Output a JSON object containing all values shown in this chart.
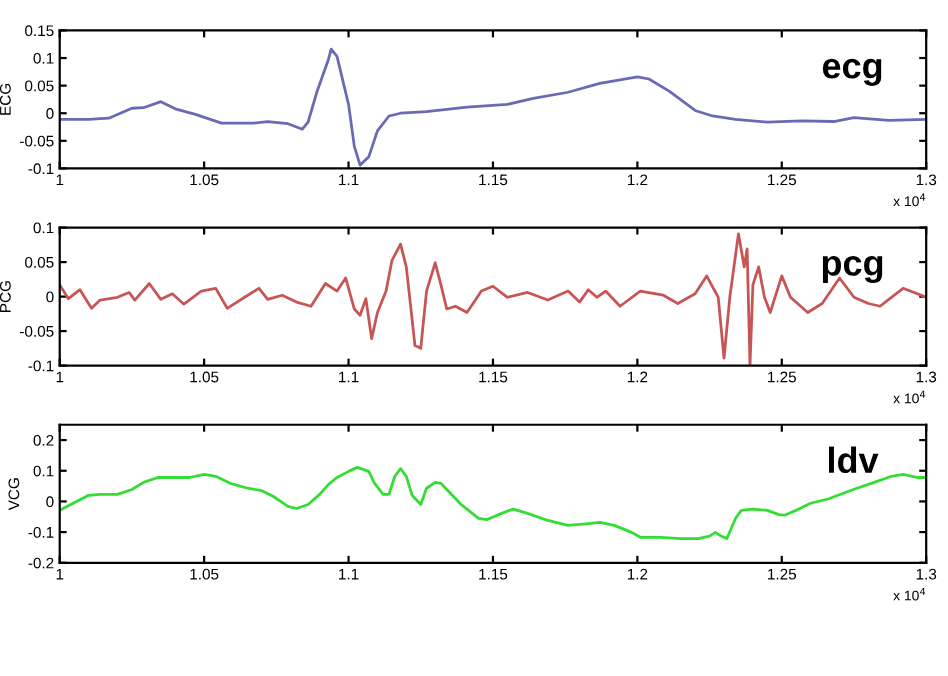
{
  "chart_data": [
    {
      "type": "line",
      "ylabel": "ECG",
      "annotations": [
        "ecg",
        "x 10$^{4}$"
      ],
      "xlim": [
        1,
        1.3
      ],
      "xticks": [
        1,
        1.05,
        1.1,
        1.15,
        1.2,
        1.25,
        1.3
      ],
      "ylim": [
        -0.1,
        0.15
      ],
      "yticks": [
        -0.1,
        -0.05,
        0,
        0.05,
        0.1,
        0.15
      ],
      "series": [
        {
          "color": "#6a6ab4",
          "x": [
            1.0,
            1.01,
            1.017,
            1.025,
            1.029,
            1.035,
            1.04,
            1.047,
            1.056,
            1.067,
            1.072,
            1.079,
            1.084,
            1.086,
            1.089,
            1.093,
            1.094,
            1.096,
            1.1,
            1.102,
            1.104,
            1.107,
            1.11,
            1.114,
            1.118,
            1.127,
            1.141,
            1.155,
            1.164,
            1.176,
            1.187,
            1.2,
            1.204,
            1.211,
            1.22,
            1.226,
            1.234,
            1.245,
            1.257,
            1.268,
            1.275,
            1.287,
            1.3
          ],
          "values": [
            -0.011,
            -0.011,
            -0.009,
            0.009,
            0.01,
            0.021,
            0.008,
            -0.002,
            -0.018,
            -0.018,
            -0.015,
            -0.019,
            -0.029,
            -0.016,
            0.038,
            0.097,
            0.116,
            0.103,
            0.016,
            -0.06,
            -0.094,
            -0.079,
            -0.032,
            -0.005,
            0,
            0.003,
            0.011,
            0.016,
            0.027,
            0.038,
            0.054,
            0.066,
            0.062,
            0.04,
            0.005,
            -0.005,
            -0.011,
            -0.016,
            -0.014,
            -0.015,
            -0.008,
            -0.013,
            -0.011
          ]
        }
      ]
    },
    {
      "type": "line",
      "ylabel": "PCG",
      "annotations": [
        "pcg",
        "x 10$^{4}$"
      ],
      "xlim": [
        1,
        1.3
      ],
      "xticks": [
        1,
        1.05,
        1.1,
        1.15,
        1.2,
        1.25,
        1.3
      ],
      "ylim": [
        -0.1,
        0.1
      ],
      "yticks": [
        -0.1,
        -0.05,
        0,
        0.05,
        0.1
      ],
      "series": [
        {
          "color": "#c85555",
          "x": [
            1.0,
            1.003,
            1.007,
            1.011,
            1.014,
            1.02,
            1.024,
            1.026,
            1.031,
            1.035,
            1.039,
            1.043,
            1.049,
            1.054,
            1.058,
            1.064,
            1.069,
            1.072,
            1.077,
            1.082,
            1.087,
            1.092,
            1.096,
            1.099,
            1.102,
            1.104,
            1.106,
            1.108,
            1.11,
            1.113,
            1.115,
            1.118,
            1.12,
            1.123,
            1.125,
            1.127,
            1.13,
            1.132,
            1.134,
            1.137,
            1.141,
            1.146,
            1.15,
            1.155,
            1.162,
            1.169,
            1.176,
            1.18,
            1.183,
            1.186,
            1.189,
            1.194,
            1.201,
            1.209,
            1.214,
            1.22,
            1.224,
            1.228,
            1.23,
            1.232,
            1.235,
            1.237,
            1.238,
            1.239,
            1.24,
            1.242,
            1.244,
            1.246,
            1.25,
            1.253,
            1.259,
            1.264,
            1.27,
            1.275,
            1.28,
            1.284,
            1.292,
            1.3
          ],
          "values": [
            0.017,
            -0.003,
            0.01,
            -0.017,
            -0.005,
            -0.001,
            0.006,
            -0.005,
            0.019,
            -0.004,
            0.004,
            -0.011,
            0.008,
            0.012,
            -0.017,
            -0.001,
            0.012,
            -0.004,
            0.002,
            -0.008,
            -0.014,
            0.019,
            0.008,
            0.027,
            -0.018,
            -0.027,
            -0.003,
            -0.061,
            -0.023,
            0.008,
            0.052,
            0.076,
            0.043,
            -0.071,
            -0.075,
            0.008,
            0.049,
            0.017,
            -0.018,
            -0.014,
            -0.023,
            0.008,
            0.015,
            -0.001,
            0.006,
            -0.005,
            0.008,
            -0.008,
            0.01,
            -0.001,
            0.008,
            -0.014,
            0.008,
            0.002,
            -0.01,
            0.004,
            0.03,
            -0.001,
            -0.089,
            -0.001,
            0.091,
            0.043,
            0.069,
            -0.099,
            0.017,
            0.043,
            -0.001,
            -0.023,
            0.03,
            -0.001,
            -0.023,
            -0.01,
            0.027,
            -0.001,
            -0.01,
            -0.014,
            0.012,
            -0.001
          ]
        }
      ]
    },
    {
      "type": "line",
      "ylabel": "VCG",
      "annotations": [
        "ldv",
        "x 10$^{4}$"
      ],
      "xlim": [
        1,
        1.3
      ],
      "xticks": [
        1,
        1.05,
        1.1,
        1.15,
        1.2,
        1.25,
        1.3
      ],
      "ylim": [
        -0.2,
        0.25
      ],
      "yticks": [
        -0.2,
        -0.1,
        0,
        0.1,
        0.2
      ],
      "series": [
        {
          "color": "#33dd33",
          "x": [
            1.0,
            1.005,
            1.01,
            1.014,
            1.02,
            1.025,
            1.029,
            1.034,
            1.04,
            1.045,
            1.05,
            1.054,
            1.059,
            1.065,
            1.07,
            1.074,
            1.079,
            1.082,
            1.086,
            1.09,
            1.093,
            1.096,
            1.1,
            1.103,
            1.107,
            1.109,
            1.112,
            1.114,
            1.116,
            1.118,
            1.12,
            1.122,
            1.125,
            1.127,
            1.13,
            1.132,
            1.134,
            1.139,
            1.145,
            1.148,
            1.153,
            1.157,
            1.162,
            1.169,
            1.176,
            1.183,
            1.187,
            1.192,
            1.198,
            1.201,
            1.208,
            1.215,
            1.221,
            1.225,
            1.227,
            1.229,
            1.231,
            1.234,
            1.236,
            1.24,
            1.245,
            1.249,
            1.251,
            1.255,
            1.26,
            1.266,
            1.272,
            1.276,
            1.282,
            1.288,
            1.292,
            1.297,
            1.3
          ],
          "values": [
            -0.029,
            -0.004,
            0.02,
            0.023,
            0.023,
            0.039,
            0.062,
            0.078,
            0.078,
            0.078,
            0.088,
            0.082,
            0.059,
            0.043,
            0.035,
            0.016,
            -0.016,
            -0.023,
            -0.01,
            0.023,
            0.055,
            0.078,
            0.098,
            0.111,
            0.098,
            0.059,
            0.023,
            0.023,
            0.082,
            0.107,
            0.082,
            0.02,
            -0.01,
            0.043,
            0.062,
            0.059,
            0.039,
            -0.01,
            -0.055,
            -0.059,
            -0.039,
            -0.025,
            -0.039,
            -0.062,
            -0.078,
            -0.072,
            -0.068,
            -0.078,
            -0.101,
            -0.117,
            -0.117,
            -0.121,
            -0.121,
            -0.113,
            -0.101,
            -0.113,
            -0.121,
            -0.055,
            -0.029,
            -0.025,
            -0.029,
            -0.043,
            -0.045,
            -0.029,
            -0.006,
            0.008,
            0.029,
            0.043,
            0.062,
            0.082,
            0.088,
            0.078,
            0.078
          ]
        }
      ]
    }
  ]
}
